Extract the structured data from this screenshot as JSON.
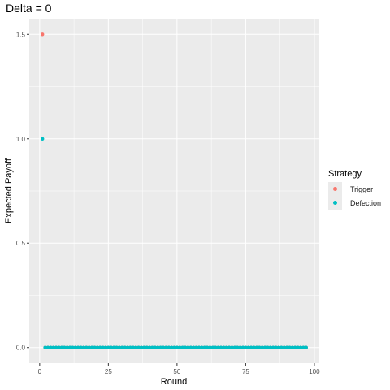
{
  "chart_data": {
    "type": "scatter",
    "title": "Delta = 0",
    "xlabel": "Round",
    "ylabel": "Expected Payoff",
    "xlim": [
      -3.8,
      101.8
    ],
    "ylim": [
      -0.075,
      1.575
    ],
    "x_ticks": [
      0,
      25,
      50,
      75,
      100
    ],
    "x_tick_labels": [
      "0",
      "25",
      "50",
      "75",
      "100"
    ],
    "y_ticks": [
      0.0,
      0.5,
      1.0,
      1.5
    ],
    "y_tick_labels": [
      "0.0",
      "0.5",
      "1.0",
      "1.5"
    ],
    "grid": true,
    "legend": {
      "title": "Strategy",
      "position": "right",
      "entries": [
        "Trigger",
        "Defection"
      ]
    },
    "series": [
      {
        "name": "Trigger",
        "color": "#F8766D",
        "points": [
          [
            1,
            1.5
          ],
          {
            "x_from": 2,
            "x_to": 97,
            "y": 0
          }
        ]
      },
      {
        "name": "Defection",
        "color": "#00BFC4",
        "points": [
          [
            1,
            1.0
          ],
          {
            "x_from": 2,
            "x_to": 97,
            "y": 0
          }
        ]
      }
    ]
  }
}
